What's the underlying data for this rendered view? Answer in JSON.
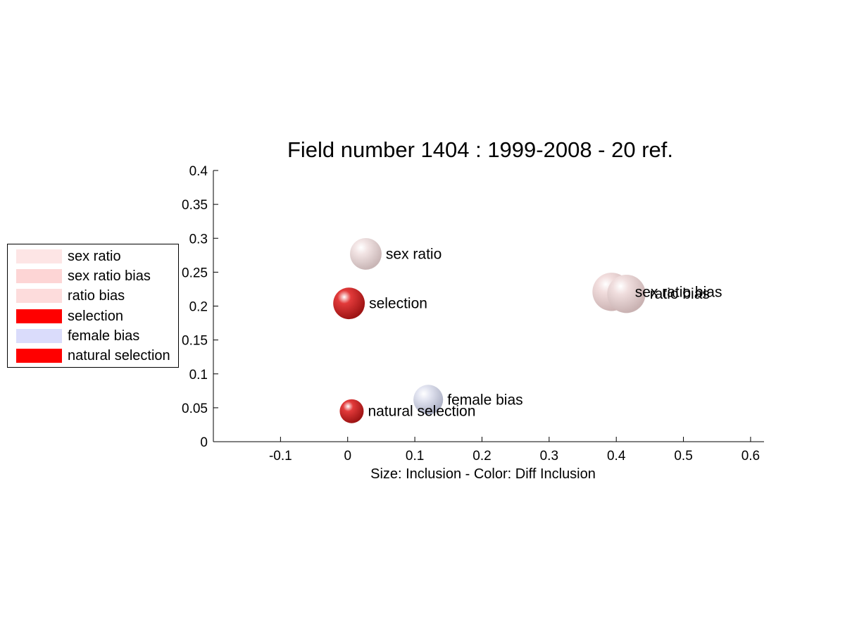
{
  "chart_data": {
    "type": "scatter",
    "title": "Field number 1404 : 1999-2008  - 20 ref.",
    "xlabel": "Size: Inclusion - Color: Diff Inclusion",
    "ylabel": "",
    "xlim": [
      -0.2,
      0.62
    ],
    "ylim": [
      0,
      0.4
    ],
    "xticks": [
      -0.1,
      0,
      0.1,
      0.2,
      0.3,
      0.4,
      0.5,
      0.6
    ],
    "xtick_labels": [
      "-0.1",
      "0",
      "0.1",
      "0.2",
      "0.3",
      "0.4",
      "0.5",
      "0.6"
    ],
    "yticks": [
      0,
      0.05,
      0.1,
      0.15,
      0.2,
      0.25,
      0.3,
      0.35,
      0.4
    ],
    "ytick_labels": [
      "0",
      "0.05",
      "0.1",
      "0.15",
      "0.2",
      "0.25",
      "0.3",
      "0.35",
      "0.4"
    ],
    "grid": false,
    "legend_position": "left",
    "points": [
      {
        "label": "sex ratio",
        "x": 0.027,
        "y": 0.277,
        "size": 0.66,
        "color": "#f2e4e4",
        "shade": "#c9b6b6"
      },
      {
        "label": "sex ratio bias",
        "x": 0.393,
        "y": 0.221,
        "size": 0.8,
        "color": "#f2dede",
        "shade": "#cdb4b4"
      },
      {
        "label": "ratio bias",
        "x": 0.415,
        "y": 0.218,
        "size": 0.8,
        "color": "#f0dede",
        "shade": "#c9b2b2"
      },
      {
        "label": "selection",
        "x": 0.002,
        "y": 0.204,
        "size": 0.66,
        "color": "#e23a3a",
        "shade": "#9e1414"
      },
      {
        "label": "female bias",
        "x": 0.12,
        "y": 0.062,
        "size": 0.62,
        "color": "#e4e6f2",
        "shade": "#aeb2c6"
      },
      {
        "label": "natural selection",
        "x": 0.006,
        "y": 0.045,
        "size": 0.5,
        "color": "#e23a3a",
        "shade": "#9e1414"
      }
    ]
  },
  "legend": {
    "items": [
      {
        "label": "sex ratio",
        "color": "#fde5e5"
      },
      {
        "label": "sex ratio bias",
        "color": "#fdd5d5"
      },
      {
        "label": "ratio bias",
        "color": "#fddcdc"
      },
      {
        "label": "selection",
        "color": "#ff0000"
      },
      {
        "label": "female bias",
        "color": "#dadcfb"
      },
      {
        "label": "natural selection",
        "color": "#ff0000"
      }
    ]
  }
}
